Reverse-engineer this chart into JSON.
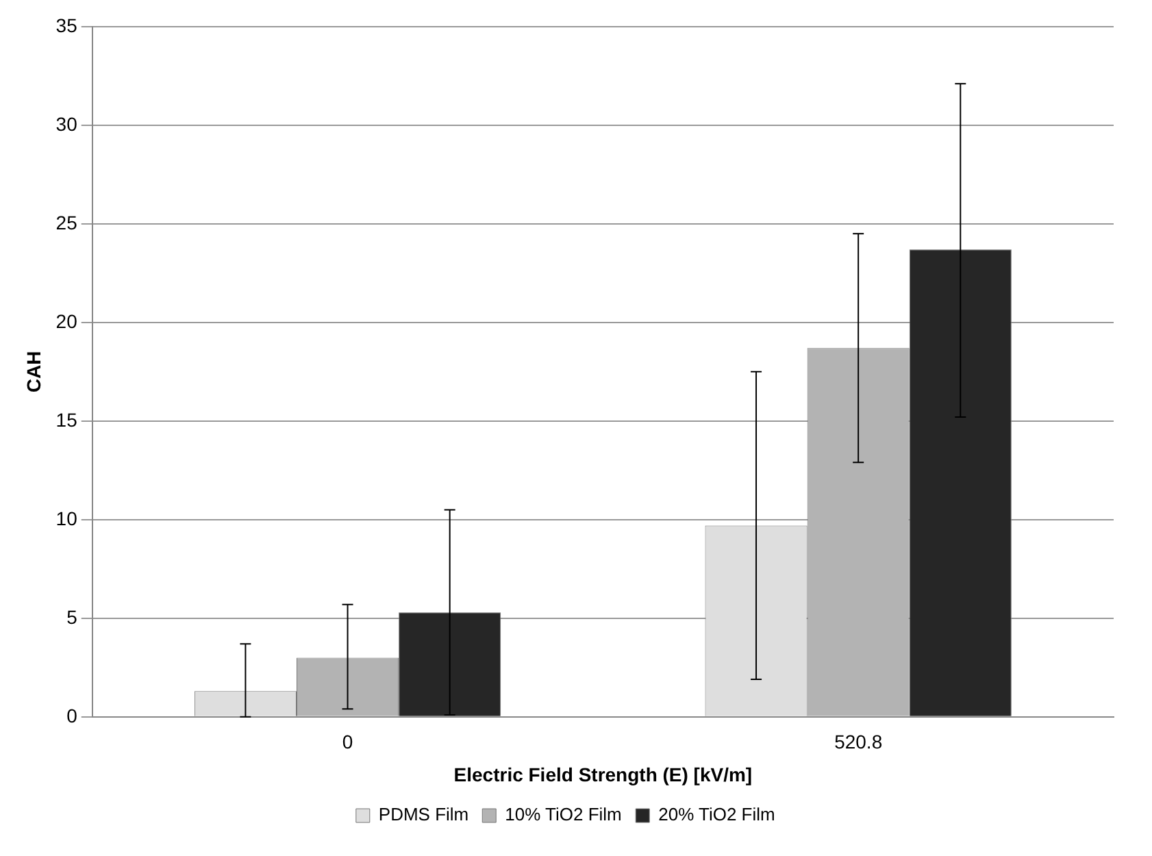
{
  "chart_data": {
    "type": "bar",
    "xlabel": "Electric Field Strength (E) [kV/m]",
    "ylabel": "CAH",
    "categories": [
      "0",
      "520.8"
    ],
    "series": [
      {
        "name": "PDMS Film",
        "color": "#dedede",
        "values": [
          1.3,
          9.7
        ],
        "errors": [
          [
            0,
            3.7
          ],
          [
            1.9,
            17.5
          ]
        ]
      },
      {
        "name": "10% TiO2 Film",
        "color": "#b3b3b3",
        "values": [
          3.0,
          18.7
        ],
        "errors": [
          [
            0.4,
            5.7
          ],
          [
            12.9,
            24.5
          ]
        ]
      },
      {
        "name": "20% TiO2 Film",
        "color": "#262626",
        "values": [
          5.3,
          23.7
        ],
        "errors": [
          [
            0.1,
            10.5
          ],
          [
            15.2,
            32.1
          ]
        ]
      }
    ],
    "ylim": [
      0,
      35
    ],
    "yticks": [
      0,
      5,
      10,
      15,
      20,
      25,
      30,
      35
    ],
    "grid": "y",
    "legend": "bottom"
  }
}
